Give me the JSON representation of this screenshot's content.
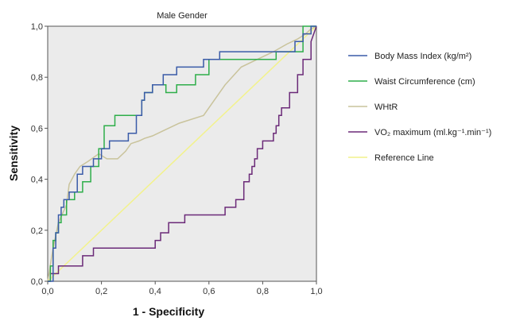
{
  "chart_data": {
    "type": "line",
    "title": "Male Gender",
    "xlabel": "1 - Specificity",
    "ylabel": "Sensitivity",
    "xlim": [
      0,
      1
    ],
    "ylim": [
      0,
      1
    ],
    "xticks": [
      "0,0",
      "0,2",
      "0,4",
      "0,6",
      "0,8",
      "1,0"
    ],
    "yticks": [
      "0,0",
      "0,2",
      "0,4",
      "0,6",
      "0,8",
      "1,0"
    ],
    "grid": false,
    "legend_position": "right",
    "background": "#ebebeb",
    "series": [
      {
        "name": "Body Mass Index  (kg/m²)",
        "color": "#3a5ba8",
        "x": [
          0.0,
          0.02,
          0.02,
          0.03,
          0.03,
          0.04,
          0.04,
          0.05,
          0.05,
          0.06,
          0.06,
          0.08,
          0.08,
          0.11,
          0.11,
          0.13,
          0.13,
          0.17,
          0.17,
          0.2,
          0.2,
          0.23,
          0.23,
          0.3,
          0.3,
          0.33,
          0.33,
          0.35,
          0.35,
          0.36,
          0.36,
          0.39,
          0.39,
          0.43,
          0.43,
          0.48,
          0.48,
          0.58,
          0.58,
          0.64,
          0.64,
          0.92,
          0.92,
          0.95,
          0.95,
          0.98,
          0.98,
          1.0
        ],
        "y": [
          0.0,
          0.0,
          0.13,
          0.13,
          0.19,
          0.19,
          0.26,
          0.26,
          0.29,
          0.29,
          0.32,
          0.32,
          0.35,
          0.35,
          0.42,
          0.42,
          0.45,
          0.45,
          0.48,
          0.48,
          0.52,
          0.52,
          0.55,
          0.55,
          0.58,
          0.58,
          0.65,
          0.65,
          0.71,
          0.71,
          0.74,
          0.74,
          0.77,
          0.77,
          0.81,
          0.81,
          0.84,
          0.84,
          0.87,
          0.87,
          0.9,
          0.9,
          0.94,
          0.94,
          0.97,
          0.97,
          1.0,
          1.0
        ]
      },
      {
        "name": "Waist Circumference (cm)",
        "color": "#2eae4a",
        "x": [
          0.0,
          0.01,
          0.01,
          0.02,
          0.02,
          0.03,
          0.03,
          0.04,
          0.04,
          0.05,
          0.05,
          0.07,
          0.07,
          0.1,
          0.1,
          0.13,
          0.13,
          0.16,
          0.16,
          0.19,
          0.19,
          0.21,
          0.21,
          0.25,
          0.25,
          0.35,
          0.35,
          0.36,
          0.36,
          0.39,
          0.39,
          0.44,
          0.44,
          0.48,
          0.48,
          0.55,
          0.55,
          0.6,
          0.6,
          0.85,
          0.85,
          0.95,
          0.95,
          1.0
        ],
        "y": [
          0.0,
          0.0,
          0.06,
          0.06,
          0.16,
          0.16,
          0.19,
          0.19,
          0.23,
          0.23,
          0.26,
          0.26,
          0.32,
          0.32,
          0.35,
          0.35,
          0.39,
          0.39,
          0.45,
          0.45,
          0.52,
          0.52,
          0.61,
          0.61,
          0.65,
          0.65,
          0.71,
          0.71,
          0.74,
          0.74,
          0.77,
          0.77,
          0.74,
          0.74,
          0.77,
          0.77,
          0.81,
          0.81,
          0.87,
          0.87,
          0.9,
          0.9,
          1.0,
          1.0
        ]
      },
      {
        "name": "WHtR",
        "color": "#c9c39b",
        "x": [
          0.0,
          0.02,
          0.04,
          0.07,
          0.08,
          0.1,
          0.12,
          0.15,
          0.19,
          0.22,
          0.26,
          0.29,
          0.31,
          0.34,
          0.36,
          0.39,
          0.43,
          0.49,
          0.58,
          0.66,
          0.72,
          0.78,
          0.84,
          0.89,
          0.93,
          0.96,
          0.98,
          1.0
        ],
        "y": [
          0.0,
          0.13,
          0.23,
          0.3,
          0.38,
          0.42,
          0.45,
          0.47,
          0.5,
          0.48,
          0.48,
          0.51,
          0.54,
          0.55,
          0.56,
          0.57,
          0.59,
          0.62,
          0.65,
          0.77,
          0.84,
          0.87,
          0.9,
          0.93,
          0.95,
          0.97,
          0.99,
          1.0
        ]
      },
      {
        "name": "VO₂ maximum (ml.kg⁻¹.min⁻¹)",
        "color": "#6b2a78",
        "x": [
          0.0,
          0.01,
          0.01,
          0.04,
          0.04,
          0.13,
          0.13,
          0.17,
          0.17,
          0.4,
          0.4,
          0.42,
          0.42,
          0.45,
          0.45,
          0.51,
          0.51,
          0.66,
          0.66,
          0.7,
          0.7,
          0.73,
          0.73,
          0.75,
          0.75,
          0.76,
          0.76,
          0.77,
          0.77,
          0.78,
          0.78,
          0.8,
          0.8,
          0.84,
          0.84,
          0.85,
          0.85,
          0.86,
          0.86,
          0.87,
          0.87,
          0.9,
          0.9,
          0.93,
          0.93,
          0.95,
          0.95,
          0.98,
          0.98,
          1.0
        ],
        "y": [
          0.0,
          0.0,
          0.03,
          0.03,
          0.06,
          0.06,
          0.1,
          0.1,
          0.13,
          0.13,
          0.16,
          0.16,
          0.19,
          0.19,
          0.23,
          0.23,
          0.26,
          0.26,
          0.29,
          0.29,
          0.32,
          0.32,
          0.39,
          0.39,
          0.42,
          0.42,
          0.45,
          0.45,
          0.48,
          0.48,
          0.52,
          0.52,
          0.55,
          0.55,
          0.58,
          0.58,
          0.61,
          0.61,
          0.65,
          0.65,
          0.68,
          0.68,
          0.74,
          0.74,
          0.81,
          0.81,
          0.87,
          0.87,
          0.94,
          1.0
        ]
      },
      {
        "name": "Reference Line",
        "color": "#f2f28c",
        "x": [
          0.0,
          1.0
        ],
        "y": [
          0.0,
          1.0
        ]
      }
    ]
  }
}
